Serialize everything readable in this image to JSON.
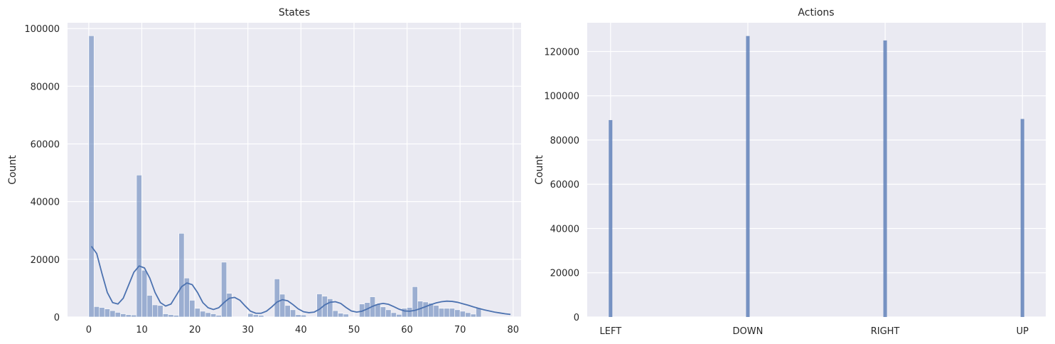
{
  "chart_data": [
    {
      "type": "bar",
      "title": "States",
      "xlabel": "",
      "ylabel": "Count",
      "xlim": [
        -4,
        81.5
      ],
      "ylim": [
        0,
        102000
      ],
      "x_ticks": [
        0,
        10,
        20,
        30,
        40,
        50,
        60,
        70,
        80
      ],
      "y_ticks": [
        0,
        20000,
        40000,
        60000,
        80000,
        100000
      ],
      "grid": true,
      "bar_color": "#4C72B0",
      "bar_alpha": 0.5,
      "kde_color": "#4C72B0",
      "x": [
        0,
        1,
        2,
        3,
        4,
        5,
        6,
        7,
        8,
        9,
        10,
        11,
        12,
        13,
        14,
        15,
        16,
        17,
        18,
        19,
        20,
        21,
        22,
        23,
        24,
        25,
        26,
        27,
        28,
        29,
        30,
        31,
        32,
        33,
        34,
        35,
        36,
        37,
        38,
        39,
        40,
        41,
        42,
        43,
        44,
        45,
        46,
        47,
        48,
        49,
        50,
        51,
        52,
        53,
        54,
        55,
        56,
        57,
        58,
        59,
        60,
        61,
        62,
        63,
        64,
        65,
        66,
        67,
        68,
        69,
        70,
        71,
        72,
        73,
        74,
        75,
        76,
        77,
        78,
        79
      ],
      "values": [
        97500,
        3600,
        3300,
        2800,
        2200,
        1600,
        1100,
        800,
        700,
        49200,
        16200,
        7500,
        4200,
        4000,
        1100,
        800,
        600,
        29000,
        13500,
        5800,
        3000,
        2000,
        1500,
        1100,
        600,
        19000,
        8200,
        0,
        0,
        0,
        1200,
        800,
        600,
        0,
        0,
        13200,
        7900,
        4000,
        2500,
        800,
        700,
        0,
        0,
        8000,
        7200,
        6300,
        2200,
        1300,
        1000,
        0,
        0,
        4500,
        5000,
        7000,
        4500,
        3500,
        2500,
        1500,
        900,
        3000,
        3300,
        10500,
        5500,
        5200,
        4800,
        4000,
        3000,
        3000,
        3000,
        2500,
        2000,
        1500,
        1000,
        3200,
        0,
        0,
        0,
        0,
        0,
        0
      ],
      "kde": [
        [
          0,
          24500
        ],
        [
          1,
          22000
        ],
        [
          2,
          15000
        ],
        [
          3,
          8500
        ],
        [
          4,
          5000
        ],
        [
          5,
          4500
        ],
        [
          6,
          6500
        ],
        [
          7,
          11000
        ],
        [
          8,
          15500
        ],
        [
          9,
          17700
        ],
        [
          10,
          17000
        ],
        [
          11,
          13500
        ],
        [
          12,
          8500
        ],
        [
          13,
          5000
        ],
        [
          14,
          3800
        ],
        [
          15,
          4500
        ],
        [
          16,
          7500
        ],
        [
          17,
          10500
        ],
        [
          18,
          11800
        ],
        [
          19,
          11200
        ],
        [
          20,
          8500
        ],
        [
          21,
          5000
        ],
        [
          22,
          3200
        ],
        [
          23,
          2600
        ],
        [
          24,
          3200
        ],
        [
          25,
          5000
        ],
        [
          26,
          6500
        ],
        [
          27,
          6800
        ],
        [
          28,
          5800
        ],
        [
          29,
          3800
        ],
        [
          30,
          2000
        ],
        [
          31,
          1300
        ],
        [
          32,
          1300
        ],
        [
          33,
          2000
        ],
        [
          34,
          3500
        ],
        [
          35,
          5200
        ],
        [
          36,
          6000
        ],
        [
          37,
          5600
        ],
        [
          38,
          4300
        ],
        [
          39,
          2800
        ],
        [
          40,
          1800
        ],
        [
          41,
          1500
        ],
        [
          42,
          1700
        ],
        [
          43,
          2700
        ],
        [
          44,
          4200
        ],
        [
          45,
          5100
        ],
        [
          46,
          5300
        ],
        [
          47,
          4700
        ],
        [
          48,
          3300
        ],
        [
          49,
          2100
        ],
        [
          50,
          1700
        ],
        [
          51,
          2000
        ],
        [
          52,
          2800
        ],
        [
          53,
          3700
        ],
        [
          54,
          4400
        ],
        [
          55,
          4700
        ],
        [
          56,
          4400
        ],
        [
          57,
          3600
        ],
        [
          58,
          2700
        ],
        [
          59,
          2100
        ],
        [
          60,
          2000
        ],
        [
          61,
          2300
        ],
        [
          62,
          2900
        ],
        [
          63,
          3600
        ],
        [
          64,
          4300
        ],
        [
          65,
          4900
        ],
        [
          66,
          5300
        ],
        [
          67,
          5500
        ],
        [
          68,
          5400
        ],
        [
          69,
          5100
        ],
        [
          70,
          4600
        ],
        [
          71,
          4100
        ],
        [
          72,
          3500
        ],
        [
          73,
          3000
        ],
        [
          74,
          2500
        ],
        [
          75,
          2100
        ],
        [
          76,
          1700
        ],
        [
          77,
          1400
        ],
        [
          78,
          1100
        ],
        [
          79,
          900
        ]
      ]
    },
    {
      "type": "bar",
      "title": "Actions",
      "xlabel": "",
      "ylabel": "Count",
      "categories": [
        "LEFT",
        "DOWN",
        "RIGHT",
        "UP"
      ],
      "values": [
        89000,
        127000,
        125000,
        89500
      ],
      "ylim": [
        0,
        133000
      ],
      "y_ticks": [
        0,
        20000,
        40000,
        60000,
        80000,
        100000,
        120000
      ],
      "grid": true,
      "bar_color": "#4C72B0",
      "bar_alpha": 0.75
    }
  ]
}
